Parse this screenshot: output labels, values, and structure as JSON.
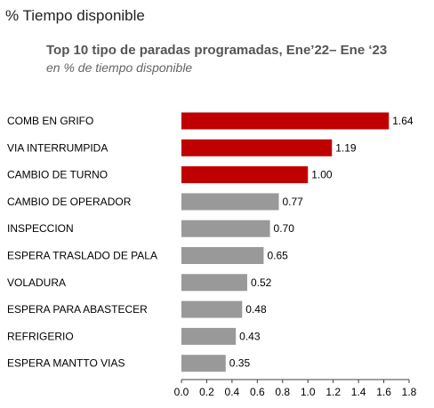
{
  "page_heading": "% Tiempo disponible",
  "chart_data": {
    "type": "bar",
    "orientation": "horizontal",
    "title": "Top 10 tipo de paradas programadas, Ene’22– Ene ‘23",
    "subtitle": "en % de tiempo disponible",
    "categories": [
      "COMB EN GRIFO",
      "VIA INTERRUMPIDA",
      "CAMBIO DE TURNO",
      "CAMBIO DE OPERADOR",
      "INSPECCION",
      "ESPERA TRASLADO DE PALA",
      "VOLADURA",
      "ESPERA PARA ABASTECER",
      "REFRIGERIO",
      "ESPERA MANTTO VIAS"
    ],
    "values": [
      1.64,
      1.19,
      1.0,
      0.77,
      0.7,
      0.65,
      0.52,
      0.48,
      0.43,
      0.35
    ],
    "value_labels": [
      "1.64",
      "1.19",
      "1.00",
      "0.77",
      "0.70",
      "0.65",
      "0.52",
      "0.48",
      "0.43",
      "0.35"
    ],
    "highlighted": [
      true,
      true,
      true,
      false,
      false,
      false,
      false,
      false,
      false,
      false
    ],
    "xlim": [
      0,
      1.8
    ],
    "x_ticks": [
      "0.0",
      "0.2",
      "0.4",
      "0.6",
      "0.8",
      "1.0",
      "1.2",
      "1.4",
      "1.6",
      "1.8"
    ],
    "grid": false,
    "colors": {
      "highlight": "#c00000",
      "default": "#999999",
      "axis": "#404040"
    }
  }
}
